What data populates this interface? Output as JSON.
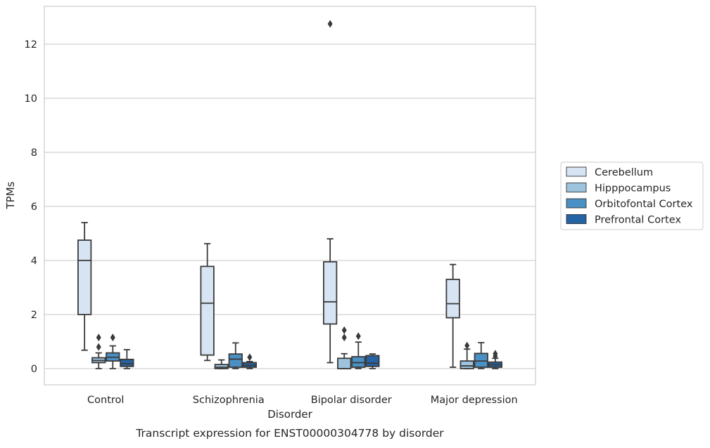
{
  "chart_data": {
    "type": "box",
    "title": "",
    "caption": "Transcript expression for ENST00000304778 by disorder",
    "xlabel": "Disorder",
    "ylabel": "TPMs",
    "ylim": [
      -0.6,
      13.4
    ],
    "yticks": [
      0,
      2,
      4,
      6,
      8,
      10,
      12
    ],
    "grid": "horizontal",
    "legend_position": "right",
    "categories": [
      "Control",
      "Schizophrenia",
      "Bipolar disorder",
      "Major depression"
    ],
    "series": [
      {
        "name": "Cerebellum",
        "color": "#d6e4f3",
        "boxes": [
          {
            "whislo": 0.68,
            "q1": 2.0,
            "med": 4.0,
            "q3": 4.75,
            "whishi": 5.4,
            "fliers": []
          },
          {
            "whislo": 0.3,
            "q1": 0.5,
            "med": 2.42,
            "q3": 3.78,
            "whishi": 4.62,
            "fliers": []
          },
          {
            "whislo": 0.22,
            "q1": 1.65,
            "med": 2.47,
            "q3": 3.95,
            "whishi": 4.8,
            "fliers": [
              12.75
            ]
          },
          {
            "whislo": 0.05,
            "q1": 1.88,
            "med": 2.4,
            "q3": 3.3,
            "whishi": 3.85,
            "fliers": []
          }
        ]
      },
      {
        "name": "Hipppocampus",
        "color": "#9dc3de",
        "boxes": [
          {
            "whislo": 0.0,
            "q1": 0.22,
            "med": 0.3,
            "q3": 0.4,
            "whishi": 0.58,
            "fliers": [
              0.8,
              1.15
            ]
          },
          {
            "whislo": 0.0,
            "q1": 0.0,
            "med": 0.05,
            "q3": 0.15,
            "whishi": 0.32,
            "fliers": []
          },
          {
            "whislo": 0.0,
            "q1": 0.0,
            "med": 0.0,
            "q3": 0.38,
            "whishi": 0.55,
            "fliers": [
              1.15,
              1.42
            ]
          },
          {
            "whislo": 0.0,
            "q1": 0.0,
            "med": 0.1,
            "q3": 0.28,
            "whishi": 0.72,
            "fliers": [
              0.85
            ]
          }
        ]
      },
      {
        "name": "Orbitofontal Cortex",
        "color": "#4a90c4",
        "boxes": [
          {
            "whislo": 0.0,
            "q1": 0.28,
            "med": 0.42,
            "q3": 0.58,
            "whishi": 0.84,
            "fliers": [
              1.15
            ]
          },
          {
            "whislo": 0.0,
            "q1": 0.05,
            "med": 0.35,
            "q3": 0.54,
            "whishi": 0.95,
            "fliers": []
          },
          {
            "whislo": 0.0,
            "q1": 0.05,
            "med": 0.22,
            "q3": 0.44,
            "whishi": 0.98,
            "fliers": [
              1.2
            ]
          },
          {
            "whislo": 0.0,
            "q1": 0.05,
            "med": 0.28,
            "q3": 0.56,
            "whishi": 0.96,
            "fliers": []
          }
        ]
      },
      {
        "name": "Prefrontal Cortex",
        "color": "#2463a4",
        "boxes": [
          {
            "whislo": 0.0,
            "q1": 0.08,
            "med": 0.18,
            "q3": 0.34,
            "whishi": 0.7,
            "fliers": []
          },
          {
            "whislo": 0.0,
            "q1": 0.05,
            "med": 0.12,
            "q3": 0.22,
            "whishi": 0.26,
            "fliers": [
              0.42
            ]
          },
          {
            "whislo": 0.0,
            "q1": 0.08,
            "med": 0.2,
            "q3": 0.48,
            "whishi": 0.54,
            "fliers": []
          },
          {
            "whislo": 0.0,
            "q1": 0.05,
            "med": 0.14,
            "q3": 0.24,
            "whishi": 0.38,
            "fliers": [
              0.46,
              0.55
            ]
          }
        ]
      }
    ]
  }
}
